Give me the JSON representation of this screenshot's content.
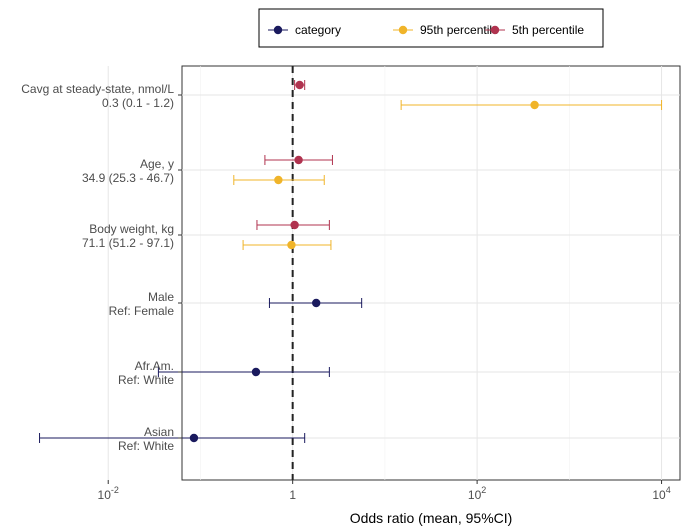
{
  "chart_data": {
    "type": "scatter",
    "subtype": "forest-plot",
    "x_scale": "log10",
    "xlim_log10": [
      -1.2,
      4.2
    ],
    "xlabel": "Odds ratio (mean, 95%CI)",
    "x_ticks": [
      {
        "base": "10",
        "exp": "-2",
        "log10": -2
      },
      {
        "base": "1",
        "exp": "",
        "log10": 0
      },
      {
        "base": "10",
        "exp": "2",
        "log10": 2
      },
      {
        "base": "10",
        "exp": "4",
        "log10": 4
      }
    ],
    "reference_line": 1,
    "grid": true,
    "legend_position": "top",
    "series": [
      {
        "name": "category",
        "color": "#1a1a5e"
      },
      {
        "name": "95th percentile",
        "color": "#f0b429"
      },
      {
        "name": "5th percentile",
        "color": "#b0334f"
      }
    ],
    "rows": [
      {
        "label1": "Cavg at steady-state, nmol/L",
        "label2": "0.3 (0.1 - 1.2)"
      },
      {
        "label1": "Age, y",
        "label2": "34.9 (25.3 - 46.7)"
      },
      {
        "label1": "Body weight, kg",
        "label2": "71.1 (51.2 - 97.1)"
      },
      {
        "label1": "Male",
        "label2": "Ref: Female"
      },
      {
        "label1": "Afr.Am.",
        "label2": "Ref: White"
      },
      {
        "label1": "Asian",
        "label2": "Ref: White"
      }
    ],
    "points": [
      {
        "row": 0,
        "series": "5th percentile",
        "mean": 1.19,
        "lower": 1.05,
        "upper": 1.35
      },
      {
        "row": 0,
        "series": "95th percentile",
        "mean": 420,
        "lower": 15,
        "upper": 10000
      },
      {
        "row": 1,
        "series": "5th percentile",
        "mean": 1.16,
        "lower": 0.5,
        "upper": 2.7
      },
      {
        "row": 1,
        "series": "95th percentile",
        "mean": 0.7,
        "lower": 0.23,
        "upper": 2.2
      },
      {
        "row": 2,
        "series": "5th percentile",
        "mean": 1.05,
        "lower": 0.41,
        "upper": 2.5
      },
      {
        "row": 2,
        "series": "95th percentile",
        "mean": 0.97,
        "lower": 0.29,
        "upper": 2.6
      },
      {
        "row": 3,
        "series": "category",
        "mean": 1.8,
        "lower": 0.56,
        "upper": 5.6
      },
      {
        "row": 4,
        "series": "category",
        "mean": 0.4,
        "lower": 0.035,
        "upper": 2.5
      },
      {
        "row": 5,
        "series": "category",
        "mean": 0.085,
        "lower": 0.0018,
        "upper": 1.35
      }
    ]
  }
}
